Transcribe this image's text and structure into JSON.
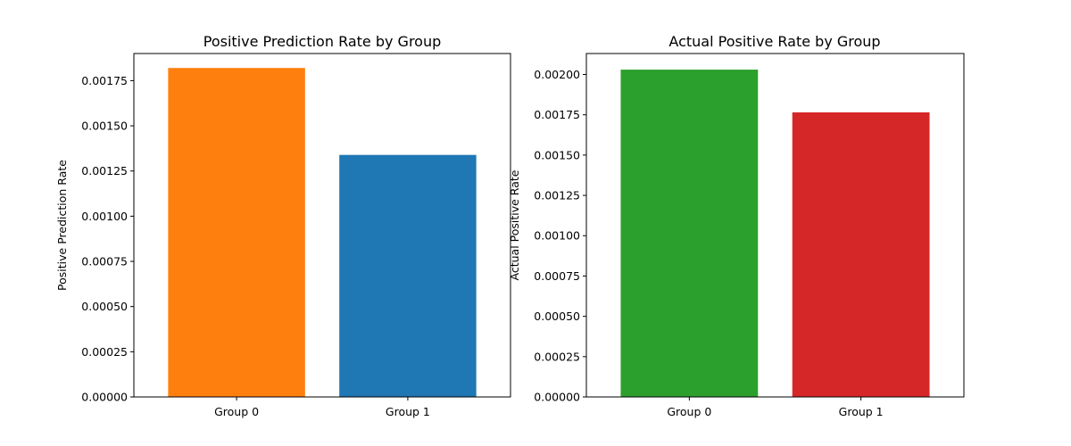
{
  "chart_data": [
    {
      "type": "bar",
      "title": "Positive Prediction Rate by Group",
      "xlabel": "",
      "ylabel": "Positive Prediction Rate",
      "categories": [
        "Group 0",
        "Group 1"
      ],
      "values": [
        0.00182,
        0.001339
      ],
      "colors": [
        "#ff7f0e",
        "#1f77b4"
      ],
      "ylim": [
        0,
        0.0019
      ],
      "yticks": [
        0,
        0.00025,
        0.0005,
        0.00075,
        0.001,
        0.00125,
        0.0015,
        0.00175
      ],
      "ytick_labels": [
        "0.00000",
        "0.00025",
        "0.00050",
        "0.00075",
        "0.00100",
        "0.00125",
        "0.00150",
        "0.00175"
      ],
      "grid": false,
      "legend": "none"
    },
    {
      "type": "bar",
      "title": "Actual Positive Rate by Group",
      "xlabel": "",
      "ylabel": "Actual Positive Rate",
      "categories": [
        "Group 0",
        "Group 1"
      ],
      "values": [
        0.00203,
        0.001765
      ],
      "colors": [
        "#2ca02c",
        "#d62728"
      ],
      "ylim": [
        0,
        0.00213
      ],
      "yticks": [
        0,
        0.00025,
        0.0005,
        0.00075,
        0.001,
        0.00125,
        0.0015,
        0.00175,
        0.002
      ],
      "ytick_labels": [
        "0.00000",
        "0.00025",
        "0.00050",
        "0.00075",
        "0.00100",
        "0.00125",
        "0.00150",
        "0.00175",
        "0.00200"
      ],
      "grid": false,
      "legend": "none"
    }
  ]
}
